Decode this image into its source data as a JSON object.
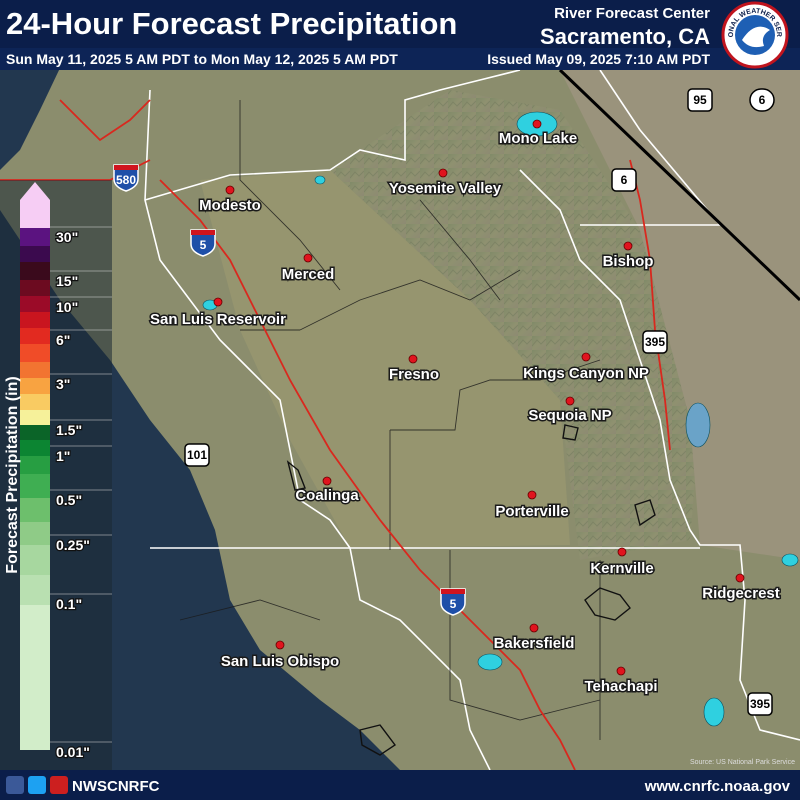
{
  "header": {
    "title": "24-Hour Forecast Precipitation",
    "period": "Sun May 11, 2025 5 AM PDT to Mon May 12, 2025 5 AM PDT",
    "center": "River Forecast Center",
    "location": "Sacramento, CA",
    "issued": "Issued May 09, 2025 7:10 AM PDT",
    "logo_text": "NATIONAL WEATHER SERVICE"
  },
  "legend": {
    "title": "Forecast Precipitation (in)",
    "labels": [
      "30\"",
      "15\"",
      "10\"",
      "6\"",
      "3\"",
      "1.5\"",
      "1\"",
      "0.5\"",
      "0.25\"",
      "0.1\"",
      "0.01\""
    ],
    "colors": [
      "#f6cdf4",
      "#5b1380",
      "#3b0a4e",
      "#3a0a1c",
      "#6c0b20",
      "#9b0b28",
      "#c9151f",
      "#e22a20",
      "#f04c28",
      "#f27431",
      "#f8a341",
      "#f9cb62",
      "#f6f19a",
      "#0b6428",
      "#0c8532",
      "#279e42",
      "#3fae52",
      "#6dbf6c",
      "#8fcb87",
      "#a7d79f",
      "#b9e0b1",
      "#d2edc9"
    ]
  },
  "cities": [
    "Modesto",
    "Yosemite Valley",
    "Mono Lake",
    "Merced",
    "San Luis Reservoir",
    "Bishop",
    "Fresno",
    "Kings Canyon NP",
    "Sequoia NP",
    "Coalinga",
    "Porterville",
    "Kernville",
    "Ridgecrest",
    "Bakersfield",
    "San Luis Obispo",
    "Tehachapi"
  ],
  "highway_shields": [
    "580",
    "5",
    "5",
    "101",
    "395",
    "395",
    "95",
    "6",
    "6"
  ],
  "source": "Source: US National Park Service",
  "footer": {
    "handle": "NWSCNRFC",
    "url": "www.cnrfc.noaa.gov"
  }
}
